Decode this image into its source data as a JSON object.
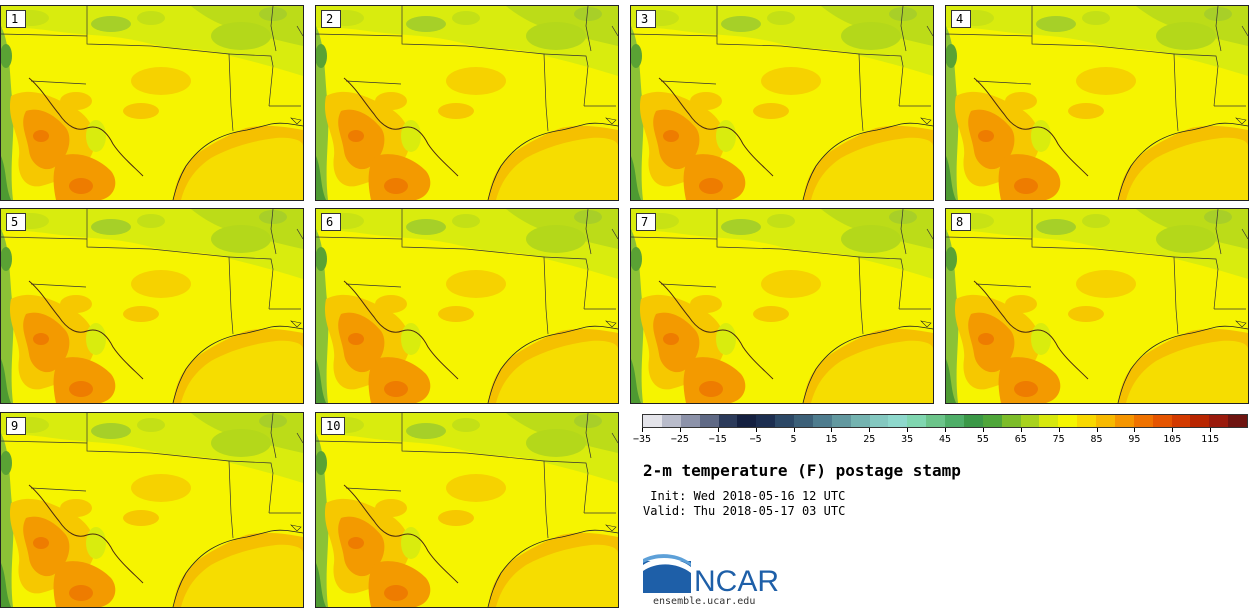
{
  "figure": {
    "title": "2-m temperature (F) postage stamp",
    "init_line": " Init: Wed 2018-05-16 12 UTC",
    "valid_line": "Valid: Thu 2018-05-17 03 UTC"
  },
  "panels": [
    {
      "label": "1"
    },
    {
      "label": "2"
    },
    {
      "label": "3"
    },
    {
      "label": "4"
    },
    {
      "label": "5"
    },
    {
      "label": "6"
    },
    {
      "label": "7"
    },
    {
      "label": "8"
    },
    {
      "label": "9"
    },
    {
      "label": "10"
    }
  ],
  "colorbar": {
    "tick_labels": [
      "−35",
      "−25",
      "−15",
      "−5",
      "5",
      "15",
      "25",
      "35",
      "45",
      "55",
      "65",
      "75",
      "85",
      "95",
      "105",
      "115"
    ],
    "colors": [
      "#e4e4ea",
      "#b9bccb",
      "#8c92a9",
      "#5f6985",
      "#2b3a5a",
      "#142040",
      "#1c2e50",
      "#2c4866",
      "#3c6078",
      "#4e7c8e",
      "#62989f",
      "#74b3b0",
      "#84c8c0",
      "#8ed8cc",
      "#80d6b0",
      "#6cc48a",
      "#4fae68",
      "#3b9847",
      "#4fa63a",
      "#7dbd2a",
      "#a8d21e",
      "#d7e80e",
      "#f5f500",
      "#f8d800",
      "#f7b900",
      "#f59500",
      "#ef7200",
      "#e55400",
      "#d33a00",
      "#b82500",
      "#9a1a0c",
      "#6e1410"
    ]
  },
  "logo": {
    "text": "NCAR",
    "url": "ensemble.ucar.edu",
    "colors": {
      "blue": "#1e5fa8",
      "swoosh": "#5da0d8"
    }
  },
  "map_colors": {
    "yellow": "#f6f400",
    "yellow_green": "#d9ec0e",
    "light_green": "#bcdc18",
    "green": "#8cc236",
    "dark_green": "#4e9a32",
    "gold": "#f6c800",
    "orange": "#f39a00",
    "deep_orange": "#ee7c00",
    "gulf": "#f5c000"
  }
}
